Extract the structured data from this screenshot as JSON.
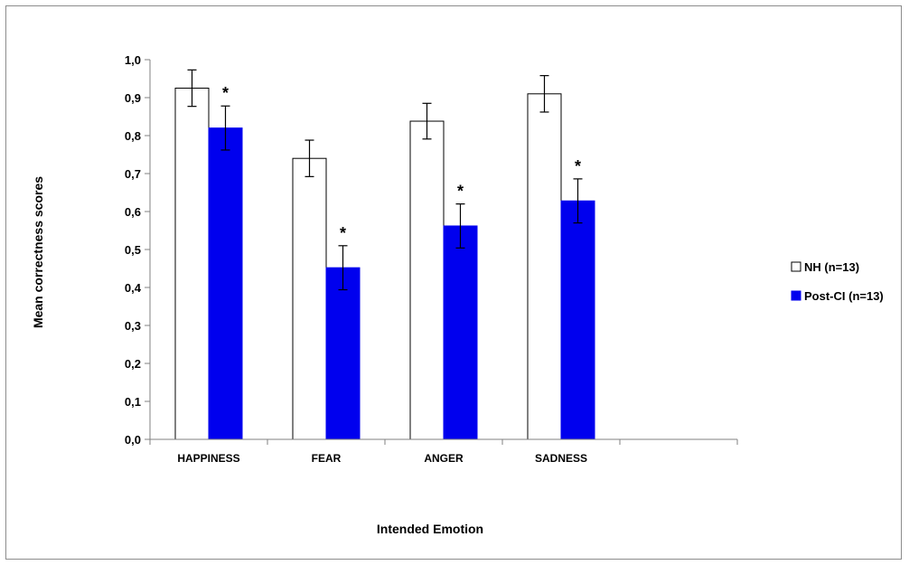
{
  "chart_data": {
    "type": "bar",
    "title": "",
    "xlabel": "Intended Emotion",
    "ylabel": "Mean correctness scores",
    "categories": [
      "HAPPINESS",
      "FEAR",
      "ANGER",
      "SADNESS"
    ],
    "extra_empty_category_slots": 1,
    "ylim": [
      0.0,
      1.0
    ],
    "yticks": [
      0.0,
      0.1,
      0.2,
      0.3,
      0.4,
      0.5,
      0.6,
      0.7,
      0.8,
      0.9,
      1.0
    ],
    "ytick_labels": [
      "0,0",
      "0,1",
      "0,2",
      "0,3",
      "0,4",
      "0,5",
      "0,6",
      "0,7",
      "0,8",
      "0,9",
      "1,0"
    ],
    "grid": false,
    "legend_position": "right",
    "series": [
      {
        "name": "NH (n=13)",
        "fill": "#ffffff",
        "stroke": "#000000",
        "values": [
          0.925,
          0.74,
          0.838,
          0.91
        ],
        "error": [
          0.048,
          0.048,
          0.047,
          0.048
        ],
        "significance": [
          "",
          "",
          "",
          ""
        ]
      },
      {
        "name": "Post-CI (n=13)",
        "fill": "#0000ee",
        "stroke": "#0000ee",
        "values": [
          0.82,
          0.452,
          0.562,
          0.628
        ],
        "error": [
          0.058,
          0.058,
          0.058,
          0.058
        ],
        "significance": [
          "*",
          "*",
          "*",
          "*"
        ]
      }
    ]
  }
}
